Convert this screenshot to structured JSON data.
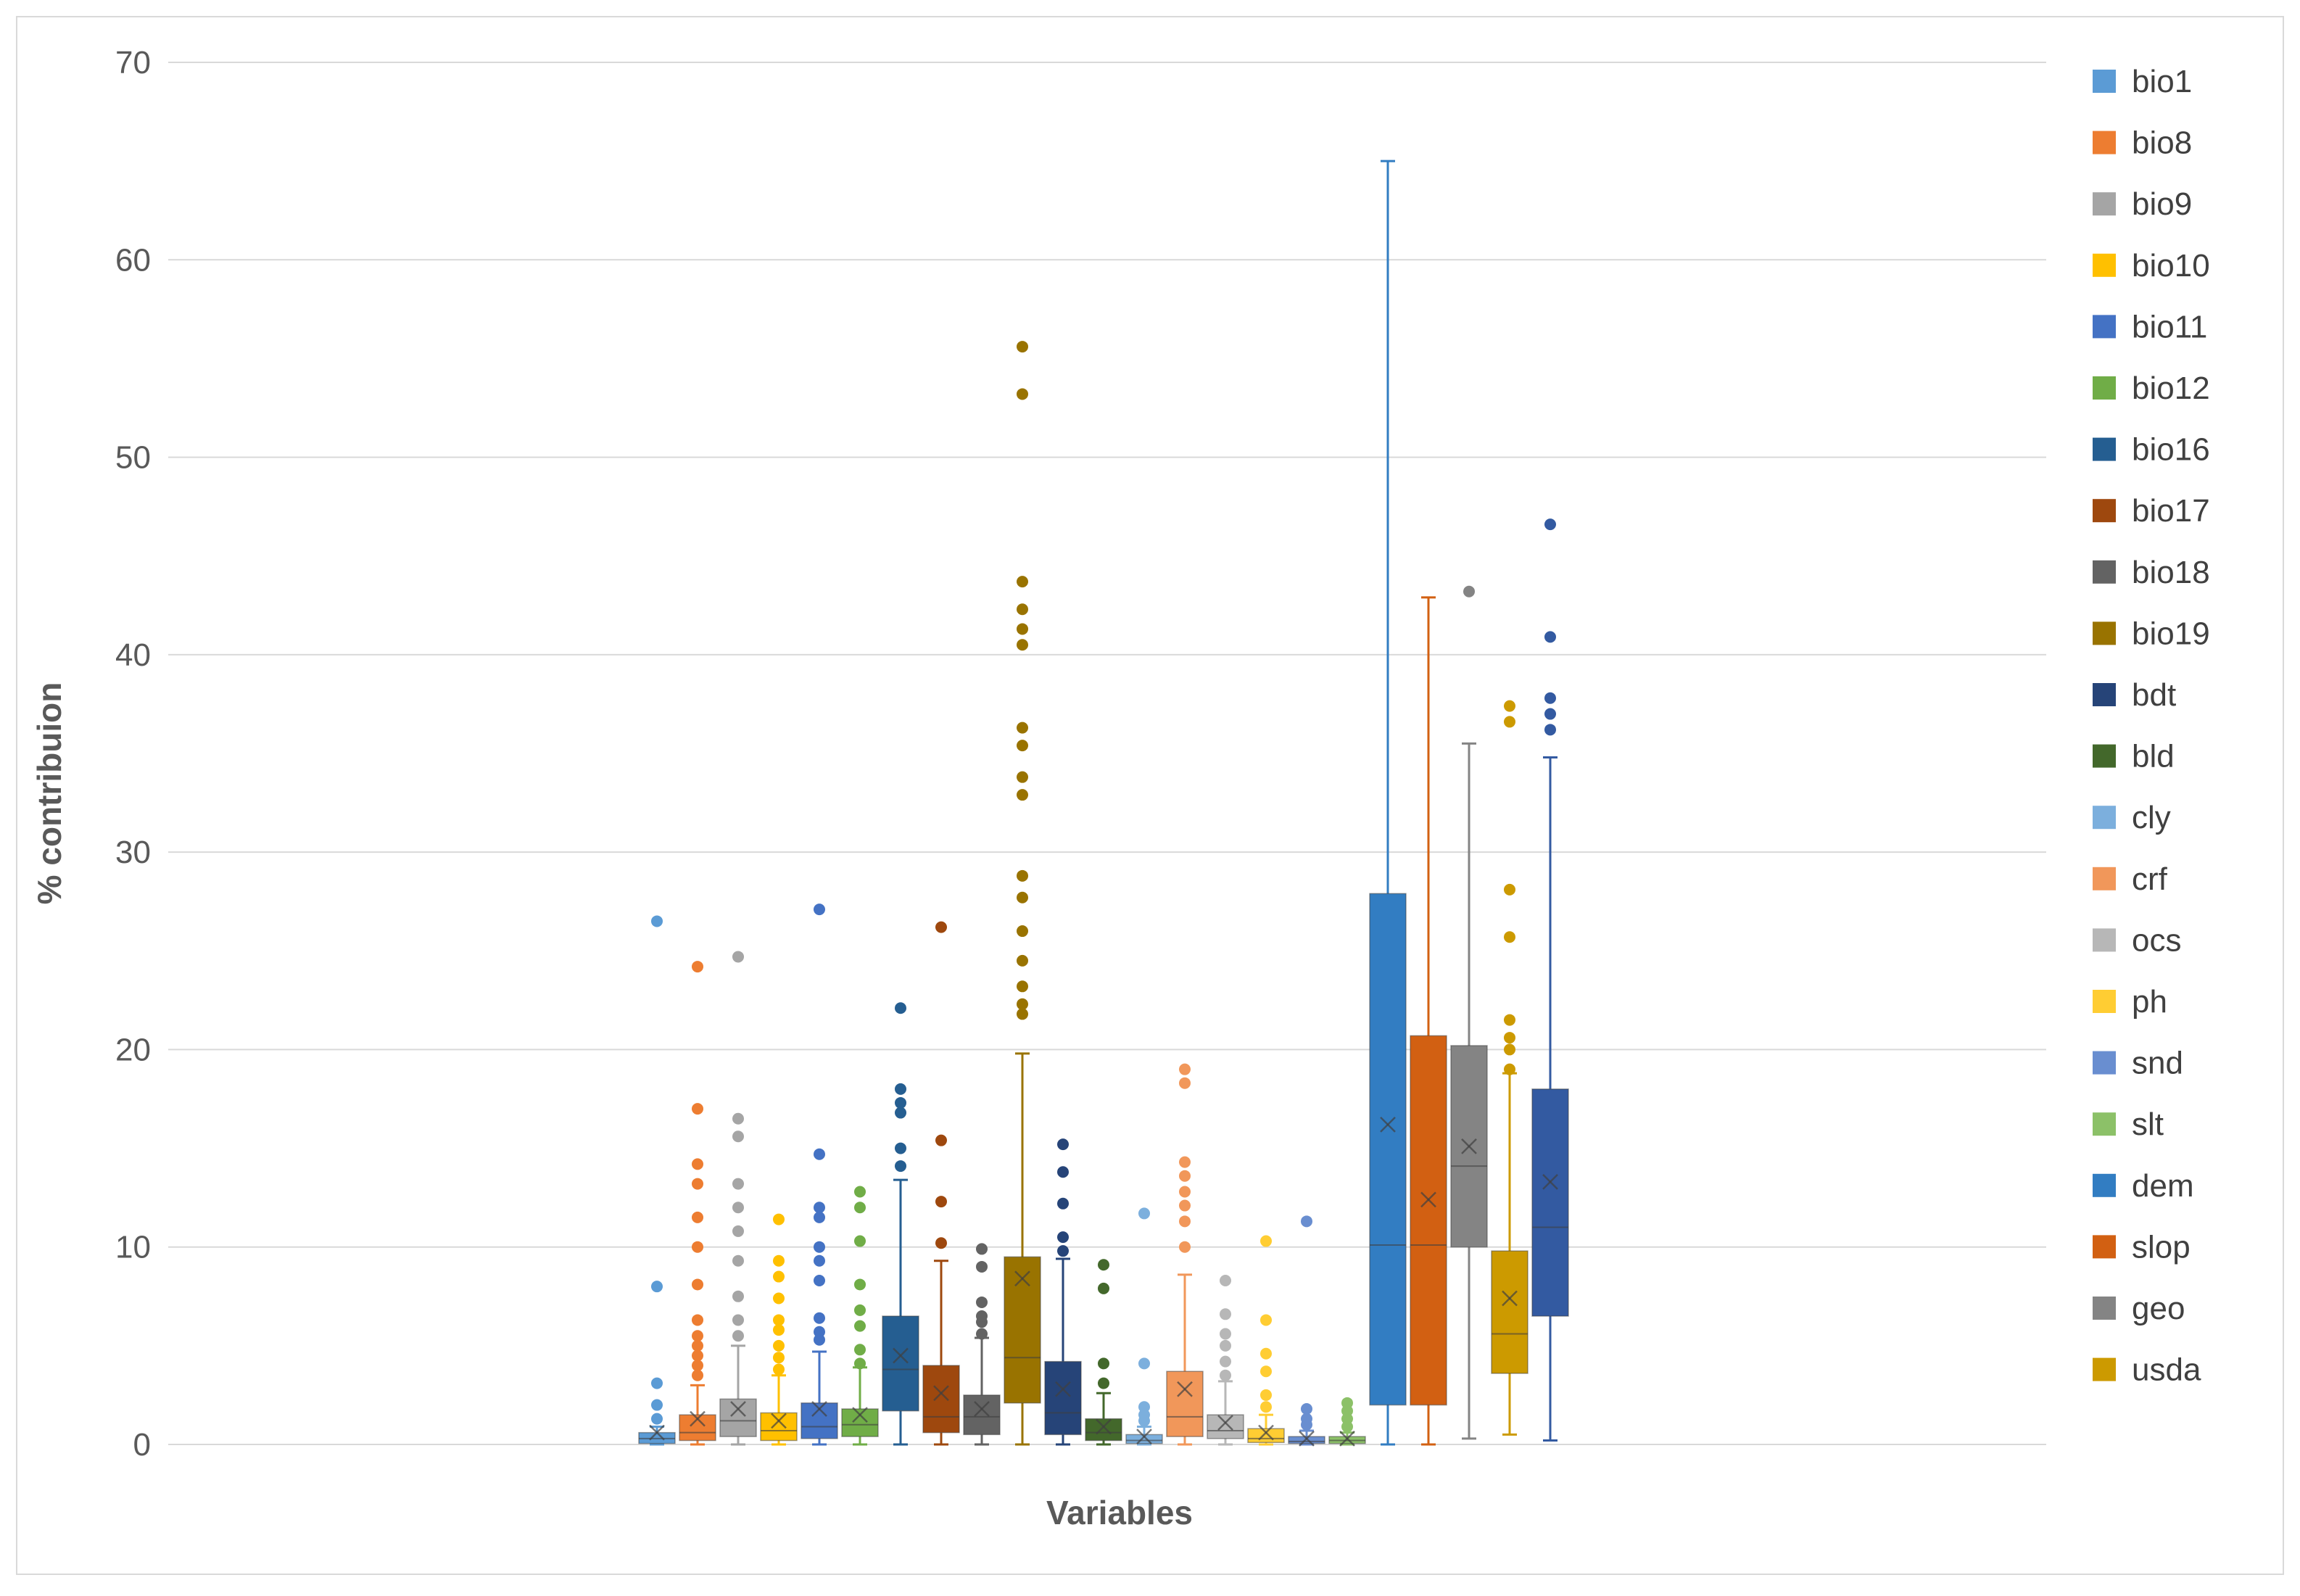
{
  "chart_data": {
    "type": "boxplot",
    "title": "",
    "xlabel": "Variables",
    "ylabel": "% contribuion",
    "ylim": [
      0,
      70
    ],
    "yticks": [
      0,
      10,
      20,
      30,
      40,
      50,
      60,
      70
    ],
    "grid": true,
    "legend_position": "right",
    "series": [
      {
        "name": "bio1",
        "color": "#5b9bd5",
        "min": 0,
        "q1": 0.05,
        "median": 0.3,
        "q3": 0.6,
        "max": 0.9,
        "mean": 0.6,
        "outliers": [
          1.3,
          2,
          3.1,
          8,
          26.5
        ]
      },
      {
        "name": "bio8",
        "color": "#ed7d31",
        "min": 0,
        "q1": 0.2,
        "median": 0.6,
        "q3": 1.5,
        "max": 3,
        "mean": 1.3,
        "outliers": [
          3.5,
          4,
          4.5,
          5,
          5.5,
          6.3,
          8.1,
          10,
          11.5,
          13.2,
          14.2,
          17,
          24.2
        ]
      },
      {
        "name": "bio9",
        "color": "#a5a5a5",
        "min": 0,
        "q1": 0.4,
        "median": 1.2,
        "q3": 2.3,
        "max": 5,
        "mean": 1.8,
        "outliers": [
          5.5,
          6.3,
          7.5,
          9.3,
          10.8,
          12,
          13.2,
          15.6,
          16.5,
          24.7
        ]
      },
      {
        "name": "bio10",
        "color": "#ffc000",
        "min": 0,
        "q1": 0.2,
        "median": 0.7,
        "q3": 1.6,
        "max": 3.5,
        "mean": 1.2,
        "outliers": [
          3.8,
          4.4,
          5,
          5.8,
          6.3,
          7.4,
          8.5,
          9.3,
          11.4
        ]
      },
      {
        "name": "bio11",
        "color": "#4472c4",
        "min": 0,
        "q1": 0.3,
        "median": 0.9,
        "q3": 2.1,
        "max": 4.7,
        "mean": 1.8,
        "outliers": [
          5.3,
          5.7,
          6.4,
          8.3,
          9.3,
          10,
          11.5,
          12,
          14.7,
          27.1
        ]
      },
      {
        "name": "bio12",
        "color": "#70ad47",
        "min": 0,
        "q1": 0.4,
        "median": 1.0,
        "q3": 1.8,
        "max": 3.9,
        "mean": 1.5,
        "outliers": [
          4.1,
          4.8,
          6,
          6.8,
          8.1,
          10.3,
          12,
          12.8
        ]
      },
      {
        "name": "bio16",
        "color": "#255e91",
        "min": 0,
        "q1": 1.7,
        "median": 3.8,
        "q3": 6.5,
        "max": 13.4,
        "mean": 4.5,
        "outliers": [
          14.1,
          15,
          16.8,
          17.3,
          18,
          22.1
        ]
      },
      {
        "name": "bio17",
        "color": "#9e480e",
        "min": 0,
        "q1": 0.6,
        "median": 1.4,
        "q3": 4,
        "max": 9.3,
        "mean": 2.6,
        "outliers": [
          10.2,
          12.3,
          15.4,
          26.2
        ]
      },
      {
        "name": "bio18",
        "color": "#636363",
        "min": 0,
        "q1": 0.5,
        "median": 1.4,
        "q3": 2.5,
        "max": 5.4,
        "mean": 1.8,
        "outliers": [
          5.6,
          6.2,
          6.5,
          7.2,
          9,
          9.9
        ]
      },
      {
        "name": "bio19",
        "color": "#997300",
        "min": 0,
        "q1": 2.1,
        "median": 4.4,
        "q3": 9.5,
        "max": 19.8,
        "mean": 8.4,
        "outliers": [
          21.8,
          22.3,
          23.2,
          24.5,
          26,
          27.7,
          28.8,
          32.9,
          33.8,
          35.4,
          36.3,
          40.5,
          41.3,
          42.3,
          43.7,
          53.2,
          55.6
        ]
      },
      {
        "name": "bdt",
        "color": "#264478",
        "min": 0,
        "q1": 0.5,
        "median": 1.6,
        "q3": 4.2,
        "max": 9.4,
        "mean": 2.8,
        "outliers": [
          9.8,
          10.5,
          12.2,
          13.8,
          15.2
        ]
      },
      {
        "name": "bld",
        "color": "#43682b",
        "min": 0,
        "q1": 0.2,
        "median": 0.6,
        "q3": 1.3,
        "max": 2.6,
        "mean": 0.9,
        "outliers": [
          3.1,
          4.1,
          7.9,
          9.1
        ]
      },
      {
        "name": "cly",
        "color": "#7cafdd",
        "min": 0,
        "q1": 0.05,
        "median": 0.2,
        "q3": 0.5,
        "max": 0.9,
        "mean": 0.4,
        "outliers": [
          1.2,
          1.5,
          1.9,
          4.1,
          11.7
        ]
      },
      {
        "name": "crf",
        "color": "#f1975a",
        "min": 0,
        "q1": 0.4,
        "median": 1.4,
        "q3": 3.7,
        "max": 8.6,
        "mean": 2.8,
        "outliers": [
          10,
          11.3,
          12.1,
          12.8,
          13.6,
          14.3,
          18.3,
          19
        ]
      },
      {
        "name": "ocs",
        "color": "#b7b7b7",
        "min": 0,
        "q1": 0.3,
        "median": 0.7,
        "q3": 1.5,
        "max": 3.2,
        "mean": 1.1,
        "outliers": [
          3.5,
          4.2,
          5,
          5.6,
          6.6,
          8.3
        ]
      },
      {
        "name": "ph",
        "color": "#ffcd33",
        "min": 0,
        "q1": 0.1,
        "median": 0.3,
        "q3": 0.8,
        "max": 1.5,
        "mean": 0.6,
        "outliers": [
          1.9,
          2.5,
          3.7,
          4.6,
          6.3,
          10.3
        ]
      },
      {
        "name": "snd",
        "color": "#698ed0",
        "min": 0,
        "q1": 0.05,
        "median": 0.15,
        "q3": 0.4,
        "max": 0.7,
        "mean": 0.3,
        "outliers": [
          1,
          1.3,
          1.8,
          11.3
        ]
      },
      {
        "name": "slt",
        "color": "#8cc168",
        "min": 0,
        "q1": 0.05,
        "median": 0.2,
        "q3": 0.4,
        "max": 0.6,
        "mean": 0.3,
        "outliers": [
          0.9,
          1.3,
          1.7,
          2.1
        ]
      },
      {
        "name": "dem",
        "color": "#327dc2",
        "min": 0,
        "q1": 2,
        "median": 10.1,
        "q3": 27.9,
        "max": 65,
        "mean": 16.2,
        "outliers": []
      },
      {
        "name": "slop",
        "color": "#d26012",
        "min": 0,
        "q1": 2,
        "median": 10.1,
        "q3": 20.7,
        "max": 42.9,
        "mean": 12.4,
        "outliers": []
      },
      {
        "name": "geo",
        "color": "#848484",
        "min": 0.3,
        "q1": 10,
        "median": 14.1,
        "q3": 20.2,
        "max": 35.5,
        "mean": 15.1,
        "outliers": [
          43.2
        ]
      },
      {
        "name": "usda",
        "color": "#cc9a00",
        "min": 0.5,
        "q1": 3.6,
        "median": 5.6,
        "q3": 9.8,
        "max": 18.8,
        "mean": 7.4,
        "outliers": [
          19,
          20,
          20.6,
          21.5,
          25.7,
          28.1,
          36.6,
          37.4
        ]
      },
      {
        "name": "",
        "color": "#335aa1",
        "min": 0.2,
        "q1": 6.5,
        "median": 11,
        "q3": 18,
        "max": 34.8,
        "mean": 13.3,
        "outliers": [
          36.2,
          37,
          37.8,
          40.9,
          46.6
        ]
      }
    ]
  }
}
